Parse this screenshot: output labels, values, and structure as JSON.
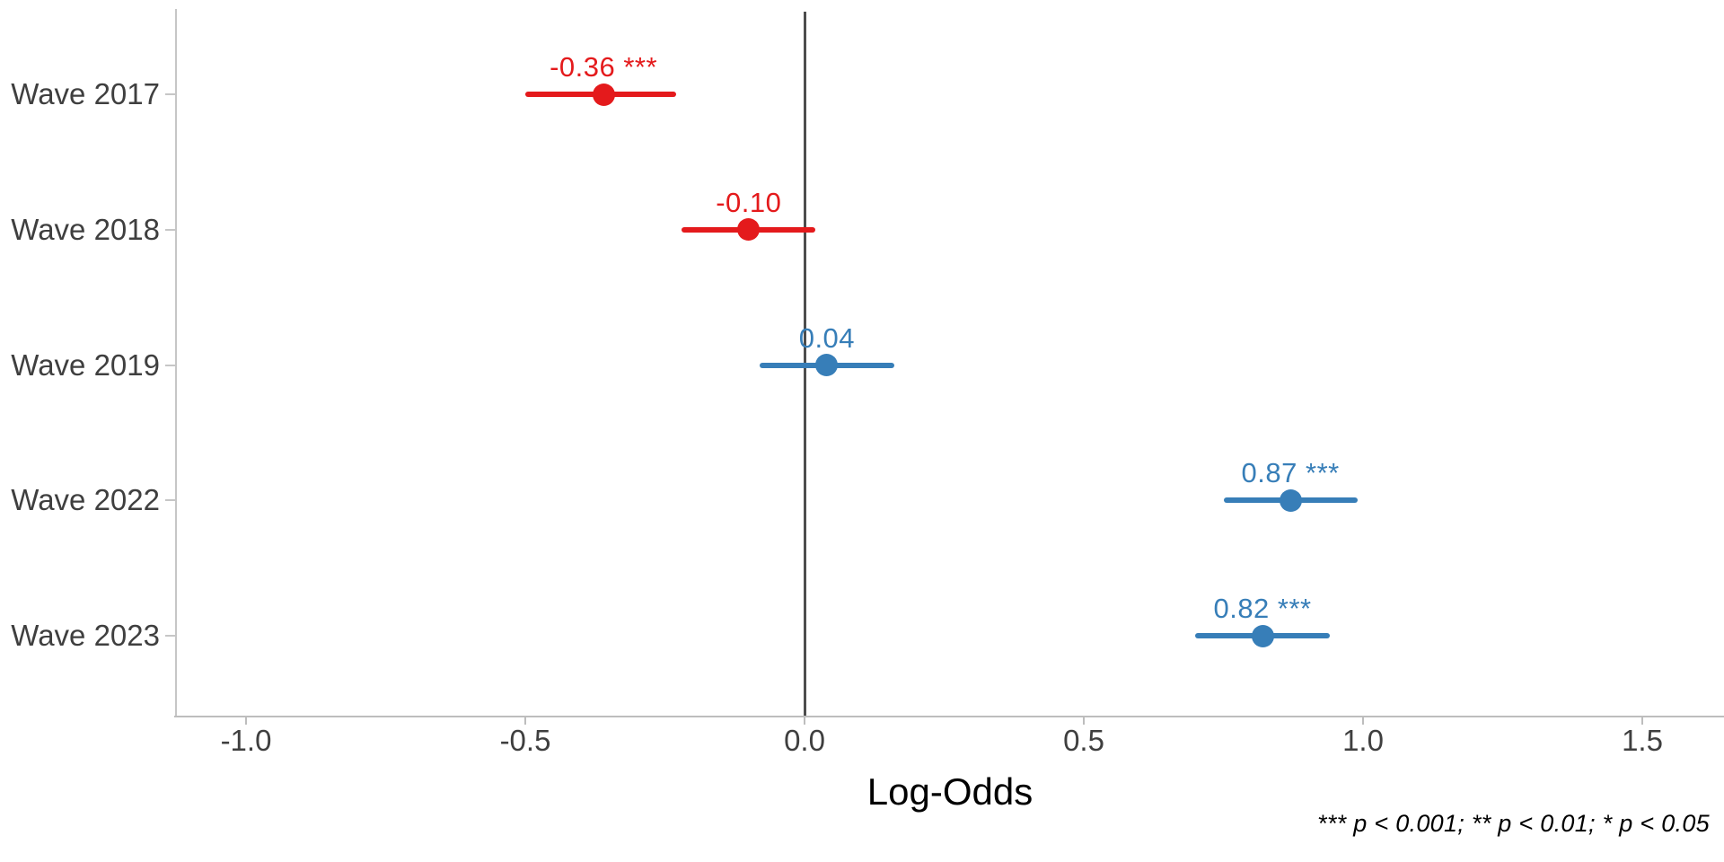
{
  "chart_data": {
    "type": "scatter",
    "variant": "forest-coefficient-plot",
    "title": "",
    "xlabel": "Log-Odds",
    "ylabel": "",
    "grid": false,
    "legend": "none",
    "zero_reference_line": 0.0,
    "x_axis": {
      "range": [
        -1.13,
        1.65
      ],
      "tick_values": [
        -1.0,
        -0.5,
        0.0,
        0.5,
        1.0,
        1.5
      ],
      "tick_labels": [
        "-1.0",
        "-0.5",
        "0.0",
        "0.5",
        "1.0",
        "1.5"
      ]
    },
    "categories": [
      "Wave 2017",
      "Wave 2018",
      "Wave 2019",
      "Wave 2022",
      "Wave 2023"
    ],
    "rows": [
      {
        "category": "Wave 2017",
        "estimate": -0.36,
        "ci_low": -0.5,
        "ci_high": -0.23,
        "label": "-0.36 ***",
        "significance": "***",
        "color": "#e41a1c"
      },
      {
        "category": "Wave 2018",
        "estimate": -0.1,
        "ci_low": -0.22,
        "ci_high": 0.02,
        "label": "-0.10",
        "significance": "",
        "color": "#e41a1c"
      },
      {
        "category": "Wave 2019",
        "estimate": 0.04,
        "ci_low": -0.08,
        "ci_high": 0.16,
        "label": "0.04",
        "significance": "",
        "color": "#377eb8"
      },
      {
        "category": "Wave 2022",
        "estimate": 0.87,
        "ci_low": 0.75,
        "ci_high": 0.99,
        "label": "0.87 ***",
        "significance": "***",
        "color": "#377eb8"
      },
      {
        "category": "Wave 2023",
        "estimate": 0.82,
        "ci_low": 0.7,
        "ci_high": 0.94,
        "label": "0.82 ***",
        "significance": "***",
        "color": "#377eb8"
      }
    ],
    "footnote": "*** p < 0.001; ** p < 0.01; * p < 0.05",
    "colors": {
      "negative_series": "#e41a1c",
      "positive_series": "#377eb8",
      "zero_line": "#4d4d4d",
      "axis_line": "#c0c0c0",
      "tick_text": "#3f3f3f",
      "axis_title_text": "#000000",
      "background": "#ffffff"
    }
  }
}
